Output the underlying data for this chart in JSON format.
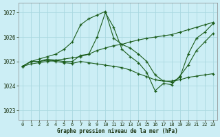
{
  "title": "Graphe pression niveau de la mer (hPa)",
  "background_color": "#cceef5",
  "grid_color": "#aad8e0",
  "line_color": "#1a5c1a",
  "xlim": [
    -0.5,
    23.5
  ],
  "ylim": [
    1022.6,
    1027.4
  ],
  "yticks": [
    1023,
    1024,
    1025,
    1026,
    1027
  ],
  "xticks": [
    0,
    1,
    2,
    3,
    4,
    5,
    6,
    7,
    8,
    9,
    10,
    11,
    12,
    13,
    14,
    15,
    16,
    17,
    18,
    19,
    20,
    21,
    22,
    23
  ],
  "series": [
    {
      "x": [
        0,
        1,
        2,
        3,
        4,
        5,
        6,
        7,
        8,
        9,
        10,
        11,
        12,
        13,
        14,
        15,
        16,
        17,
        18,
        19,
        20,
        21,
        22,
        23
      ],
      "y": [
        1024.8,
        1025.0,
        1025.1,
        1025.2,
        1025.3,
        1025.5,
        1025.8,
        1026.5,
        1026.75,
        1026.9,
        1027.05,
        1025.95,
        1025.7,
        1025.55,
        1025.3,
        1025.0,
        1024.45,
        1024.2,
        1024.15,
        1024.35,
        1025.3,
        1025.95,
        1026.2,
        1026.55
      ]
    },
    {
      "x": [
        0,
        1,
        2,
        3,
        4,
        5,
        6,
        7,
        8,
        9,
        10,
        11,
        12,
        13,
        14,
        15,
        16,
        17,
        18,
        19,
        20,
        21,
        22,
        23
      ],
      "y": [
        1024.8,
        1025.0,
        1025.0,
        1025.1,
        1025.05,
        1025.0,
        1025.0,
        1025.25,
        1025.3,
        1026.0,
        1027.0,
        1026.4,
        1025.5,
        1025.2,
        1024.95,
        1024.55,
        1023.8,
        1024.1,
        1024.05,
        1024.4,
        1024.85,
        1025.45,
        1025.8,
        1026.15
      ]
    },
    {
      "x": [
        0,
        1,
        2,
        3,
        4,
        5,
        6,
        7,
        8,
        9,
        10,
        11,
        12,
        13,
        14,
        15,
        16,
        17,
        18,
        19,
        20,
        21,
        22,
        23
      ],
      "y": [
        1024.8,
        1025.0,
        1025.0,
        1025.05,
        1025.0,
        1024.95,
        1024.92,
        1025.0,
        1024.95,
        1024.9,
        1024.85,
        1024.8,
        1024.75,
        1024.65,
        1024.5,
        1024.38,
        1024.25,
        1024.2,
        1024.2,
        1024.25,
        1024.35,
        1024.4,
        1024.45,
        1024.5
      ]
    },
    {
      "x": [
        0,
        1,
        2,
        3,
        4,
        5,
        6,
        7,
        8,
        9,
        10,
        11,
        12,
        13,
        14,
        15,
        16,
        17,
        18,
        19,
        20,
        21,
        22,
        23
      ],
      "y": [
        1024.8,
        1024.9,
        1024.95,
        1025.0,
        1025.05,
        1025.1,
        1025.15,
        1025.2,
        1025.3,
        1025.45,
        1025.55,
        1025.65,
        1025.7,
        1025.8,
        1025.88,
        1025.95,
        1026.0,
        1026.05,
        1026.1,
        1026.2,
        1026.3,
        1026.4,
        1026.5,
        1026.6
      ]
    }
  ]
}
